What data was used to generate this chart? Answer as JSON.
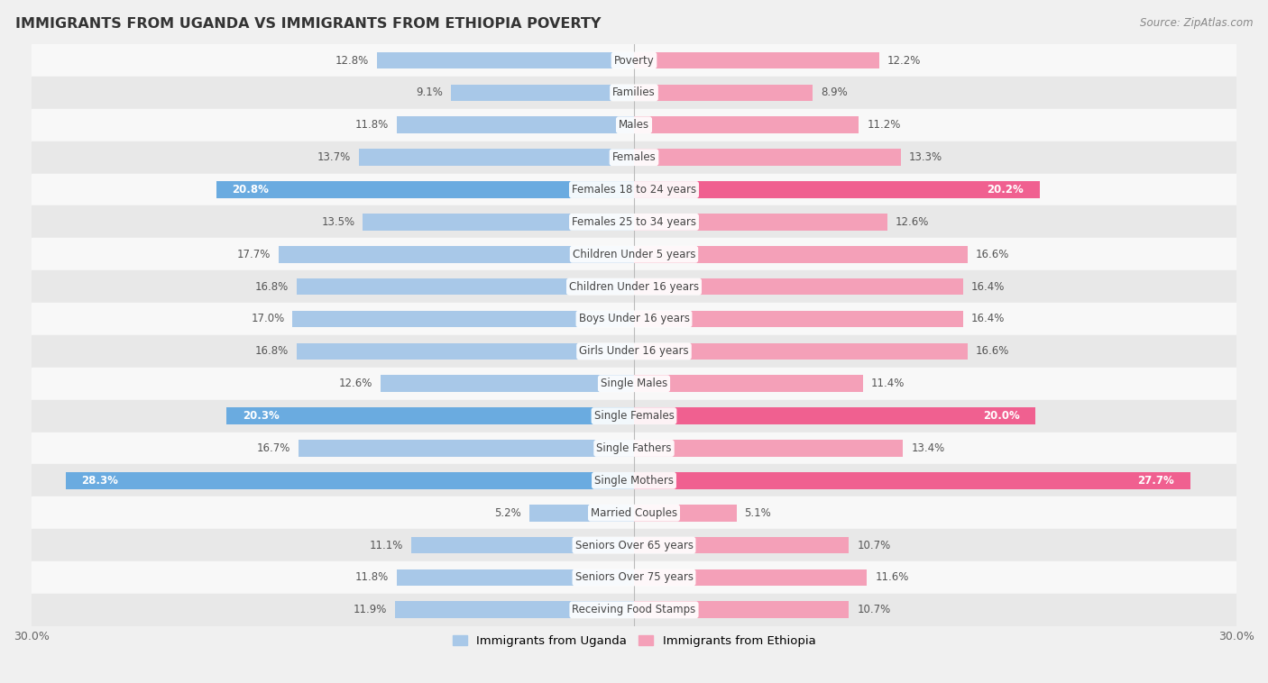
{
  "title": "IMMIGRANTS FROM UGANDA VS IMMIGRANTS FROM ETHIOPIA POVERTY",
  "source": "Source: ZipAtlas.com",
  "categories": [
    "Poverty",
    "Families",
    "Males",
    "Females",
    "Females 18 to 24 years",
    "Females 25 to 34 years",
    "Children Under 5 years",
    "Children Under 16 years",
    "Boys Under 16 years",
    "Girls Under 16 years",
    "Single Males",
    "Single Females",
    "Single Fathers",
    "Single Mothers",
    "Married Couples",
    "Seniors Over 65 years",
    "Seniors Over 75 years",
    "Receiving Food Stamps"
  ],
  "uganda_values": [
    12.8,
    9.1,
    11.8,
    13.7,
    20.8,
    13.5,
    17.7,
    16.8,
    17.0,
    16.8,
    12.6,
    20.3,
    16.7,
    28.3,
    5.2,
    11.1,
    11.8,
    11.9
  ],
  "ethiopia_values": [
    12.2,
    8.9,
    11.2,
    13.3,
    20.2,
    12.6,
    16.6,
    16.4,
    16.4,
    16.6,
    11.4,
    20.0,
    13.4,
    27.7,
    5.1,
    10.7,
    11.6,
    10.7
  ],
  "uganda_color": "#a8c8e8",
  "ethiopia_color": "#f4a0b8",
  "uganda_highlight_color": "#6aabe0",
  "ethiopia_highlight_color": "#f06090",
  "highlight_rows": [
    4,
    11,
    13
  ],
  "xlim": 30.0,
  "background_color": "#f0f0f0",
  "row_bg_light": "#f8f8f8",
  "row_bg_dark": "#e8e8e8",
  "legend_uganda": "Immigrants from Uganda",
  "legend_ethiopia": "Immigrants from Ethiopia",
  "bar_height": 0.52
}
